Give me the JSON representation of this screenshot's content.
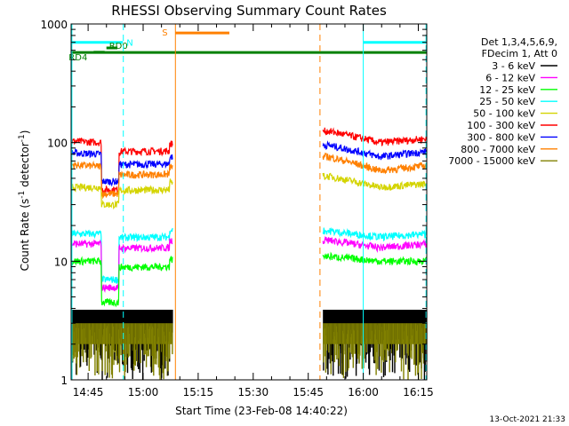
{
  "chart_data": {
    "type": "line",
    "title": "RHESSI Observing Summary Count Rates",
    "xlabel": "Start Time (23-Feb-08 14:40:22)",
    "ylabel_main": "Count Rate (s",
    "ylabel_sup1": "-1",
    "ylabel_mid": " detector",
    "ylabel_sup2": "-1",
    "ylabel_end": ")",
    "yscale": "log",
    "ylim": [
      1,
      1000
    ],
    "xlim_min": [
      40.37,
      137.3
    ],
    "x_ticks": [
      {
        "min": 45,
        "label": "14:45"
      },
      {
        "min": 60,
        "label": "15:00"
      },
      {
        "min": 75,
        "label": "15:15"
      },
      {
        "min": 90,
        "label": "15:30"
      },
      {
        "min": 105,
        "label": "15:45"
      },
      {
        "min": 120,
        "label": "16:00"
      },
      {
        "min": 135,
        "label": "16:15"
      }
    ],
    "y_ticks": [
      {
        "value": 1,
        "label": "1"
      },
      {
        "value": 10,
        "label": "10"
      },
      {
        "value": 100,
        "label": "100"
      },
      {
        "value": 1000,
        "label": "1000"
      }
    ],
    "legend_header": [
      "Det 1,3,4,5,6,9,",
      "FDecim 1, Att 0"
    ],
    "series": [
      {
        "name": "3 - 6 keV",
        "color": "#000000"
      },
      {
        "name": "6 - 12 keV",
        "color": "#ff00ff"
      },
      {
        "name": "12 - 25 keV",
        "color": "#00ff00"
      },
      {
        "name": "25 - 50 keV",
        "color": "#00ffff"
      },
      {
        "name": "50 - 100 keV",
        "color": "#d4d400"
      },
      {
        "name": "100 - 300 keV",
        "color": "#ff0000"
      },
      {
        "name": "300 - 800 keV",
        "color": "#0000ff"
      },
      {
        "name": "800 - 7000 keV",
        "color": "#ff8000"
      },
      {
        "name": "7000 - 15000 keV",
        "color": "#808000"
      }
    ],
    "segments": [
      {
        "start": 40.4,
        "end": 68.0,
        "levels": {
          "100 - 300 keV": [
            103,
            100,
            40,
            85
          ],
          "300 - 800 keV": [
            82,
            80,
            47,
            66
          ],
          "800 - 7000 keV": [
            65,
            63,
            37,
            54
          ],
          "50 - 100 keV": [
            42,
            42,
            30,
            40
          ],
          "25 - 50 keV": [
            17,
            17,
            7,
            16
          ],
          "6 - 12 keV": [
            14,
            14,
            6,
            13
          ],
          "12 - 25 keV": [
            10,
            10,
            4.5,
            9
          ]
        }
      },
      {
        "start": 109.0,
        "end": 137.3,
        "levels": {
          "100 - 300 keV": [
            125,
            100,
            100,
            108
          ],
          "300 - 800 keV": [
            95,
            80,
            76,
            84
          ],
          "800 - 7000 keV": [
            76,
            62,
            58,
            64
          ],
          "50 - 100 keV": [
            52,
            45,
            42,
            45
          ],
          "25 - 50 keV": [
            18,
            16,
            16,
            17
          ],
          "6 - 12 keV": [
            15,
            14,
            13,
            14
          ],
          "12 - 25 keV": [
            11,
            10,
            10,
            10
          ]
        }
      }
    ],
    "flags": [
      {
        "label": "N",
        "color": "#00ffff",
        "ranges": [
          [
            40.4,
            54.5
          ],
          [
            120.0,
            137.3
          ]
        ],
        "y": 700
      },
      {
        "label": "S",
        "color": "#ff8000",
        "ranges": [
          [
            68.8,
            83.5
          ]
        ],
        "y": 840
      },
      {
        "label": "",
        "color": "#008000",
        "ranges": [
          [
            40.4,
            137.3
          ]
        ],
        "y": 575
      },
      {
        "label": "RD0",
        "color": "#008000",
        "ranges": [
          [
            50.0,
            53.0
          ]
        ],
        "y": 628
      },
      {
        "label": "RD4",
        "color": "#008000",
        "ranges": [
          [
            46.5,
            49.5
          ]
        ],
        "y": 578
      }
    ],
    "vlines": [
      {
        "min": 40.6,
        "color": "#00ffff",
        "style": "solid"
      },
      {
        "min": 54.6,
        "color": "#00ffff",
        "style": "dashed"
      },
      {
        "min": 68.8,
        "color": "#ff8000",
        "style": "solid"
      },
      {
        "min": 108.2,
        "color": "#ff8000",
        "style": "dashed"
      },
      {
        "min": 120.0,
        "color": "#00ffff",
        "style": "solid"
      },
      {
        "min": 137.1,
        "color": "#00ffff",
        "style": "dashed"
      }
    ],
    "timestamp": "13-Oct-2021 21:33"
  }
}
